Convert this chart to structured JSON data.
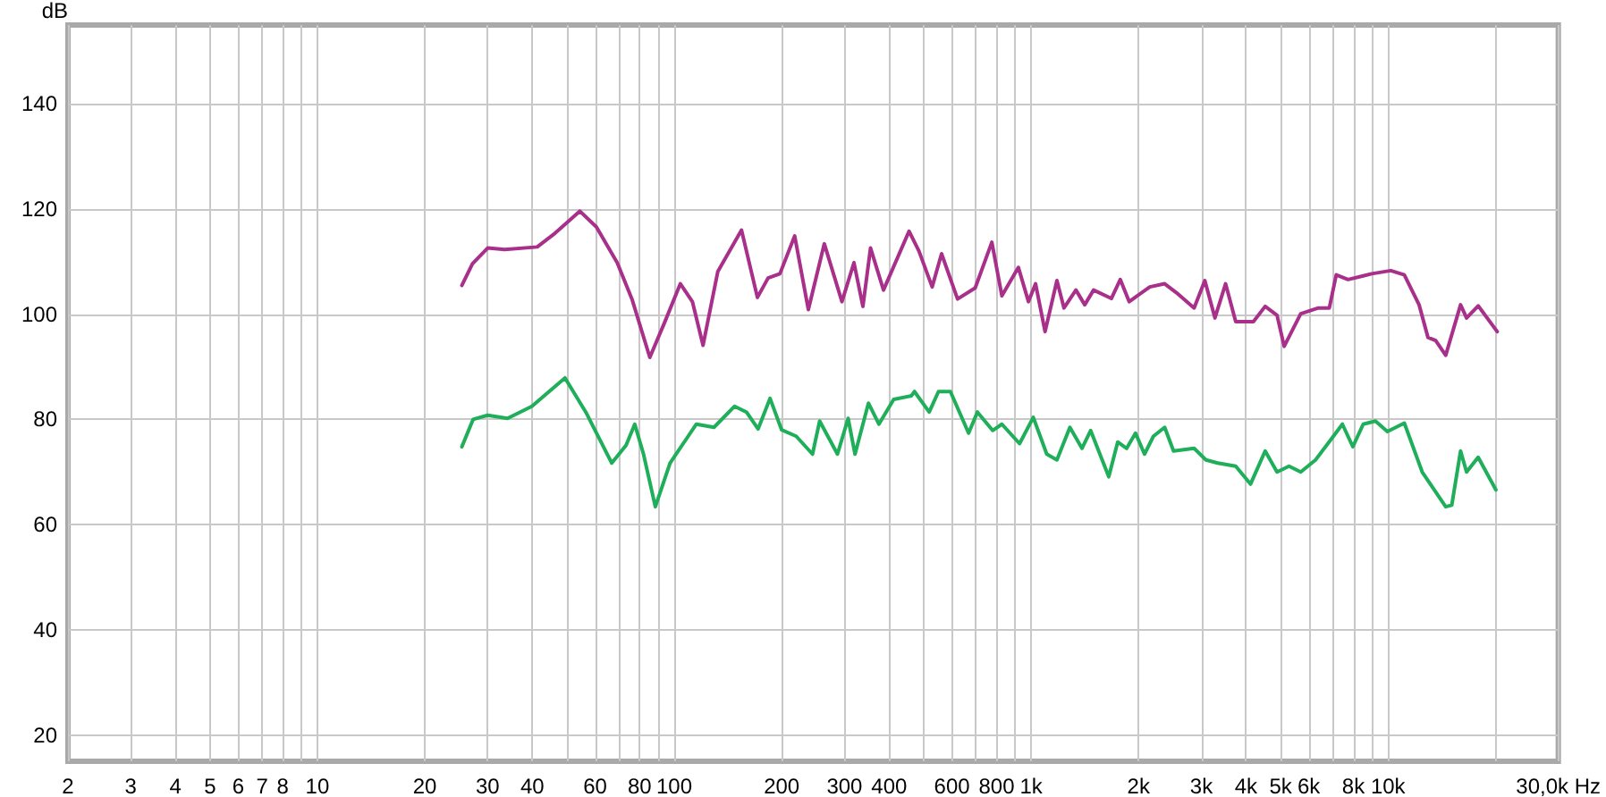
{
  "chart_data": {
    "type": "line",
    "ylabel": "dB",
    "log": "x",
    "grid": true,
    "marker": "none",
    "line_style": "solid",
    "xlim": [
      2,
      30000
    ],
    "ylim": [
      15,
      155
    ],
    "xticks": [
      2,
      3,
      4,
      5,
      6,
      7,
      8,
      {
        "value": 9,
        "label": null
      },
      10,
      20,
      30,
      40,
      {
        "value": 50,
        "label": null
      },
      60,
      {
        "value": 70,
        "label": null
      },
      80,
      {
        "value": 90,
        "label": null
      },
      100,
      200,
      300,
      400,
      {
        "value": 500,
        "label": null
      },
      600,
      {
        "value": 700,
        "label": null
      },
      800,
      {
        "value": 900,
        "label": null
      },
      {
        "value": 1000,
        "label": "1k"
      },
      {
        "value": 2000,
        "label": "2k"
      },
      {
        "value": 3000,
        "label": "3k"
      },
      {
        "value": 4000,
        "label": "4k"
      },
      {
        "value": 5000,
        "label": "5k"
      },
      {
        "value": 6000,
        "label": "6k"
      },
      {
        "value": 7000,
        "label": null
      },
      {
        "value": 8000,
        "label": "8k"
      },
      {
        "value": 9000,
        "label": null
      },
      {
        "value": 10000,
        "label": "10k"
      },
      {
        "value": 20000,
        "label": null
      },
      {
        "value": 30000,
        "label": "30,0k Hz"
      }
    ],
    "yticks": [
      20,
      40,
      60,
      80,
      100,
      120,
      140
    ],
    "series": [
      {
        "color": "#a8308a",
        "x": [
          25.4,
          27.2,
          30,
          33.5,
          41.3,
          46.3,
          54.4,
          60.5,
          69.2,
          76.1,
          85.4,
          93.9,
          104,
          112.4,
          120.4,
          132.4,
          154.3,
          171,
          183.2,
          197.7,
          217.5,
          237.5,
          263.3,
          295,
          318.8,
          337.7,
          354.8,
          385.7,
          454.8,
          485,
          528,
          561,
          622,
          697,
          776,
          828,
          921,
          983,
          1029,
          1094,
          1181,
          1236,
          1335,
          1413,
          1496,
          1678,
          1777,
          1882,
          2150,
          2367,
          2553,
          2862,
          3067,
          3273,
          3506,
          3743,
          4196,
          4526,
          4887,
          5117,
          5694,
          6383,
          6848,
          7160,
          7727,
          9003,
          10180,
          11108,
          12220,
          12940,
          13600,
          14510,
          15970,
          16600,
          17890,
          20230
        ],
        "values": [
          105.5,
          109.6,
          112.6,
          112.3,
          112.8,
          115.4,
          119.6,
          116.6,
          109.8,
          102.9,
          91.8,
          98.4,
          105.8,
          102.4,
          94.1,
          108.1,
          116.0,
          103.2,
          106.9,
          107.7,
          114.9,
          100.9,
          113.4,
          102.4,
          109.8,
          101.5,
          112.6,
          104.6,
          115.8,
          112.0,
          105.2,
          111.5,
          102.9,
          105.0,
          113.7,
          103.5,
          108.9,
          102.4,
          105.8,
          96.7,
          106.4,
          101.2,
          104.6,
          101.8,
          104.6,
          103.0,
          106.6,
          102.4,
          105.2,
          105.8,
          104.1,
          101.2,
          106.4,
          99.3,
          105.8,
          98.6,
          98.6,
          101.5,
          99.8,
          93.9,
          100.1,
          101.2,
          101.2,
          107.5,
          106.6,
          107.7,
          108.3,
          107.5,
          101.8,
          95.6,
          95.0,
          92.2,
          101.8,
          99.3,
          101.6,
          96.7
        ]
      },
      {
        "color": "#1fae5a",
        "x": [
          25.4,
          27.3,
          30,
          34.1,
          39.9,
          49.4,
          56.5,
          66.8,
          73.3,
          77.5,
          82,
          88.5,
          97.3,
          115.3,
          129.2,
          147.6,
          159.3,
          171.8,
          185.5,
          200,
          219.6,
          244,
          255.5,
          286.6,
          307,
          321,
          350,
          374.4,
          412,
          462,
          471,
          518,
          550,
          594,
          668,
          707,
          780,
          828,
          928,
          1014,
          1106,
          1181,
          1284,
          1388,
          1468,
          1650,
          1748,
          1852,
          1961,
          2078,
          2201,
          2367,
          2506,
          2862,
          3089,
          3335,
          3743,
          4118,
          4526,
          4887,
          5280,
          5694,
          6264,
          7030,
          7450,
          7970,
          8520,
          9220,
          9960,
          11110,
          12470,
          14510,
          15090,
          15970,
          16600,
          17890,
          20060
        ],
        "values": [
          74.8,
          80.0,
          80.8,
          80.2,
          82.5,
          87.9,
          81.4,
          71.7,
          75.1,
          79.1,
          73.4,
          63.4,
          71.7,
          79.1,
          78.5,
          82.5,
          81.4,
          78.2,
          84.0,
          78.0,
          76.8,
          73.4,
          79.7,
          73.4,
          80.2,
          73.4,
          83.1,
          79.1,
          83.8,
          84.5,
          85.3,
          81.4,
          85.3,
          85.3,
          77.4,
          81.4,
          77.9,
          79.1,
          75.4,
          80.4,
          73.4,
          72.3,
          78.5,
          74.5,
          77.9,
          69.1,
          75.7,
          74.5,
          77.4,
          73.4,
          76.8,
          78.5,
          74.0,
          74.5,
          72.3,
          71.7,
          71.1,
          67.7,
          74.0,
          70.0,
          71.1,
          70.0,
          72.3,
          76.8,
          79.1,
          74.8,
          79.1,
          79.7,
          77.7,
          79.3,
          70.0,
          63.4,
          63.7,
          74.0,
          70.0,
          72.8,
          66.6
        ]
      }
    ]
  }
}
